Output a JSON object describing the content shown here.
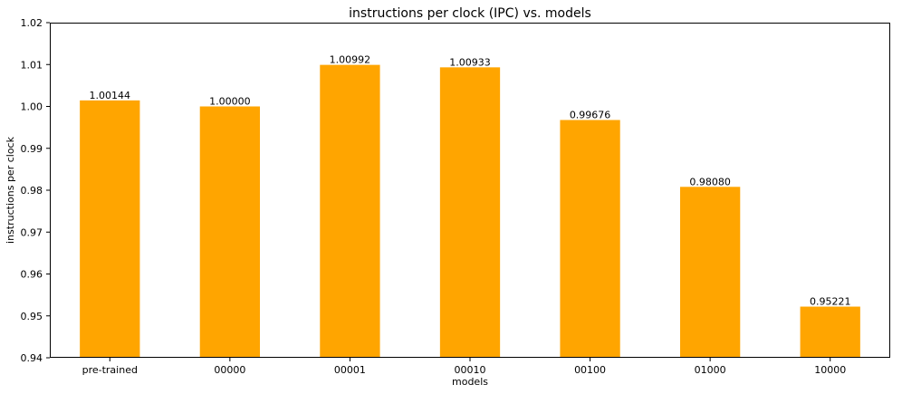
{
  "chart_data": {
    "type": "bar",
    "title": "instructions per clock (IPC) vs. models",
    "xlabel": "models",
    "ylabel": "instructions per clock",
    "categories": [
      "pre-trained",
      "00000",
      "00001",
      "00010",
      "00100",
      "01000",
      "10000"
    ],
    "values": [
      1.00144,
      1.0,
      1.00992,
      1.00933,
      0.99676,
      0.9808,
      0.95221
    ],
    "value_labels": [
      "1.00144",
      "1.00000",
      "1.00992",
      "1.00933",
      "0.99676",
      "0.98080",
      "0.95221"
    ],
    "ylim": [
      0.94,
      1.02
    ],
    "yticks": [
      "0.94",
      "0.95",
      "0.96",
      "0.97",
      "0.98",
      "0.99",
      "1.00",
      "1.01",
      "1.02"
    ],
    "grid": false,
    "bar_color": "#ffa500"
  }
}
